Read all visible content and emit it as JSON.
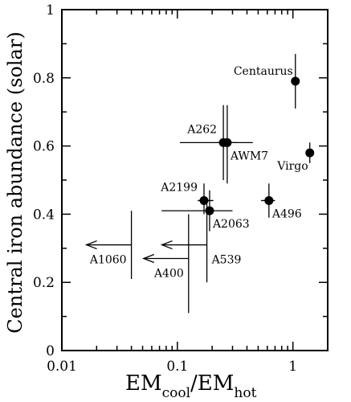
{
  "chart_data": {
    "type": "scatter",
    "xscale": "log",
    "xlim": [
      0.01,
      2
    ],
    "ylim": [
      0,
      1
    ],
    "xticks": [
      {
        "value": 0.01,
        "label": "0.01"
      },
      {
        "value": 0.1,
        "label": "0.1"
      },
      {
        "value": 1,
        "label": "1"
      }
    ],
    "yticks": [
      {
        "value": 0,
        "label": "0"
      },
      {
        "value": 0.2,
        "label": "0.2"
      },
      {
        "value": 0.4,
        "label": "0.4"
      },
      {
        "value": 0.6,
        "label": "0.6"
      },
      {
        "value": 0.8,
        "label": "0.8"
      },
      {
        "value": 1,
        "label": "1"
      }
    ],
    "ylabel": "Central iron abundance (solar)",
    "xlabel": {
      "main1": "EM",
      "sub1": "cool",
      "main2": "/EM",
      "sub2": "hot"
    },
    "points": [
      {
        "name": "Centaurus",
        "x": 1.05,
        "y": 0.79,
        "xerr": [
          1.05,
          1.05
        ],
        "yerr": [
          0.71,
          0.87
        ],
        "label_pos": "left"
      },
      {
        "name": "A262",
        "x": 0.25,
        "y": 0.61,
        "xerr": [
          0.105,
          0.45
        ],
        "yerr": [
          0.5,
          0.72
        ],
        "label_pos": "upper-left"
      },
      {
        "name": "AWM7",
        "x": 0.27,
        "y": 0.61,
        "xerr": [
          0.22,
          0.33
        ],
        "yerr": [
          0.49,
          0.72
        ],
        "label_pos": "below-right"
      },
      {
        "name": "Virgo",
        "x": 1.4,
        "y": 0.58,
        "xerr": [
          1.33,
          1.47
        ],
        "yerr": [
          0.55,
          0.61
        ],
        "label_pos": "below-left"
      },
      {
        "name": "A2199",
        "x": 0.17,
        "y": 0.44,
        "xerr": [
          0.15,
          0.205
        ],
        "yerr": [
          0.4,
          0.49
        ],
        "label_pos": "upper-left"
      },
      {
        "name": "A2063",
        "x": 0.19,
        "y": 0.41,
        "xerr": [
          0.073,
          0.3
        ],
        "yerr": [
          0.35,
          0.47
        ],
        "label_pos": "below-right"
      },
      {
        "name": "A496",
        "x": 0.62,
        "y": 0.44,
        "xerr": [
          0.53,
          0.7
        ],
        "yerr": [
          0.39,
          0.49
        ],
        "label_pos": "below-right"
      },
      {
        "name": "A539",
        "x": 0.18,
        "y": 0.31,
        "upper_limit_x": true,
        "yerr": [
          0.2,
          0.43
        ],
        "label_pos": "below-right"
      },
      {
        "name": "A400",
        "x": 0.125,
        "y": 0.27,
        "upper_limit_x": true,
        "yerr": [
          0.11,
          0.4
        ],
        "label_pos": "below-left"
      },
      {
        "name": "A1060",
        "x": 0.04,
        "y": 0.31,
        "upper_limit_x": true,
        "yerr": [
          0.21,
          0.41
        ],
        "label_pos": "below-left"
      }
    ]
  }
}
